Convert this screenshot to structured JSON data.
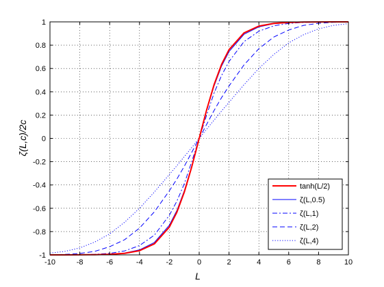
{
  "chart_data": {
    "type": "line",
    "title": "",
    "xlabel": "L",
    "ylabel": "ζ(L,c)/2c",
    "xlim": [
      -10,
      10
    ],
    "ylim": [
      -1,
      1
    ],
    "xticks": [
      -10,
      -8,
      -6,
      -4,
      -2,
      0,
      2,
      4,
      6,
      8,
      10
    ],
    "yticks": [
      -1,
      -0.8,
      -0.6,
      -0.4,
      -0.2,
      0,
      0.2,
      0.4,
      0.6,
      0.8,
      1
    ],
    "xtick_labels": [
      "-10",
      "-8",
      "-6",
      "-4",
      "-2",
      "0",
      "2",
      "4",
      "6",
      "8",
      "10"
    ],
    "ytick_labels": [
      "-1",
      "-0.8",
      "-0.6",
      "-0.4",
      "-0.2",
      "0",
      "0.2",
      "0.4",
      "0.6",
      "0.8",
      "1"
    ],
    "grid": true,
    "grid_style": "dotted",
    "legend_position": "bottom-right",
    "x": [
      -10,
      -9,
      -8,
      -7,
      -6,
      -5,
      -4,
      -3,
      -2,
      -1.5,
      -1,
      -0.5,
      0,
      0.5,
      1,
      1.5,
      2,
      3,
      4,
      5,
      6,
      7,
      8,
      9,
      10
    ],
    "series": [
      {
        "name": "tanh(L/2)",
        "color": "#ff0000",
        "dash": "solid",
        "width": 2,
        "values": [
          -0.9999,
          -0.9998,
          -0.9993,
          -0.9982,
          -0.9951,
          -0.9866,
          -0.964,
          -0.9051,
          -0.7616,
          -0.6351,
          -0.4621,
          -0.2449,
          0,
          0.2449,
          0.4621,
          0.6351,
          0.7616,
          0.9051,
          0.964,
          0.9866,
          0.9951,
          0.9982,
          0.9993,
          0.9998,
          0.9999
        ]
      },
      {
        "name": "ζ(L,0.5)",
        "color": "#0000ff",
        "dash": "solid",
        "width": 1,
        "values": [
          -0.9999,
          -0.9997,
          -0.9991,
          -0.9978,
          -0.994,
          -0.984,
          -0.957,
          -0.893,
          -0.745,
          -0.62,
          -0.45,
          -0.238,
          0,
          0.238,
          0.45,
          0.62,
          0.745,
          0.893,
          0.957,
          0.984,
          0.994,
          0.9978,
          0.9991,
          0.9997,
          0.9999
        ]
      },
      {
        "name": "ζ(L,1)",
        "color": "#0000ff",
        "dash": "dashdot",
        "width": 1,
        "values": [
          -0.9998,
          -0.9994,
          -0.998,
          -0.995,
          -0.987,
          -0.966,
          -0.92,
          -0.83,
          -0.66,
          -0.54,
          -0.39,
          -0.2,
          0,
          0.2,
          0.39,
          0.54,
          0.66,
          0.83,
          0.92,
          0.966,
          0.987,
          0.995,
          0.998,
          0.9994,
          0.9998
        ]
      },
      {
        "name": "ζ(L,2)",
        "color": "#0000ff",
        "dash": "dashed",
        "width": 1,
        "values": [
          -0.999,
          -0.996,
          -0.988,
          -0.97,
          -0.93,
          -0.87,
          -0.77,
          -0.63,
          -0.45,
          -0.35,
          -0.24,
          -0.12,
          0,
          0.12,
          0.24,
          0.35,
          0.45,
          0.63,
          0.77,
          0.87,
          0.93,
          0.97,
          0.988,
          0.996,
          0.999
        ]
      },
      {
        "name": "ζ(L,4)",
        "color": "#0000ff",
        "dash": "dotted",
        "width": 1,
        "values": [
          -0.985,
          -0.97,
          -0.94,
          -0.89,
          -0.82,
          -0.72,
          -0.6,
          -0.46,
          -0.31,
          -0.235,
          -0.157,
          -0.079,
          0,
          0.079,
          0.157,
          0.235,
          0.31,
          0.46,
          0.6,
          0.72,
          0.82,
          0.89,
          0.94,
          0.97,
          0.985
        ]
      }
    ]
  }
}
